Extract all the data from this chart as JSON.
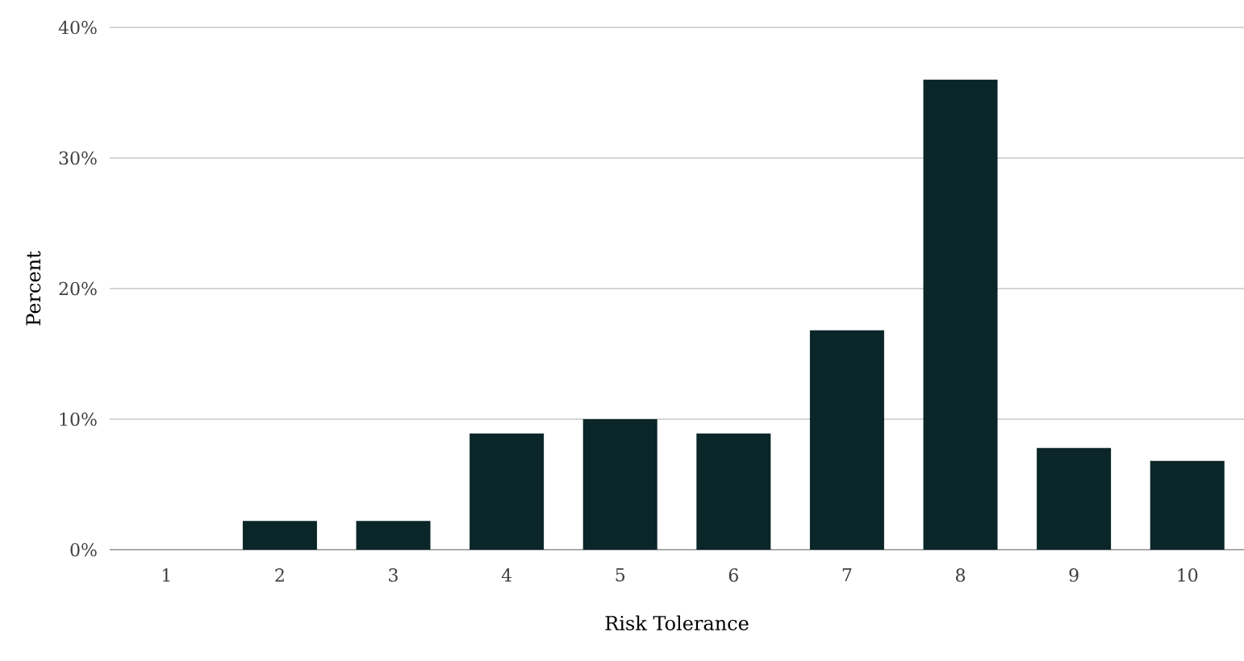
{
  "chart_data": {
    "type": "bar",
    "xlabel": "Risk Tolerance",
    "ylabel": "Percent",
    "categories": [
      "1",
      "2",
      "3",
      "4",
      "5",
      "6",
      "7",
      "8",
      "9",
      "10"
    ],
    "values": [
      0,
      2.2,
      2.2,
      8.9,
      10,
      8.9,
      16.8,
      36,
      7.8,
      6.8
    ],
    "color": "#0a2628",
    "ylim": [
      0,
      40
    ],
    "yticks": [
      {
        "value": 0,
        "label": "0%"
      },
      {
        "value": 10,
        "label": "10%"
      },
      {
        "value": 20,
        "label": "20%"
      },
      {
        "value": 30,
        "label": "30%"
      },
      {
        "value": 40,
        "label": "40%"
      }
    ],
    "grid": "y"
  }
}
